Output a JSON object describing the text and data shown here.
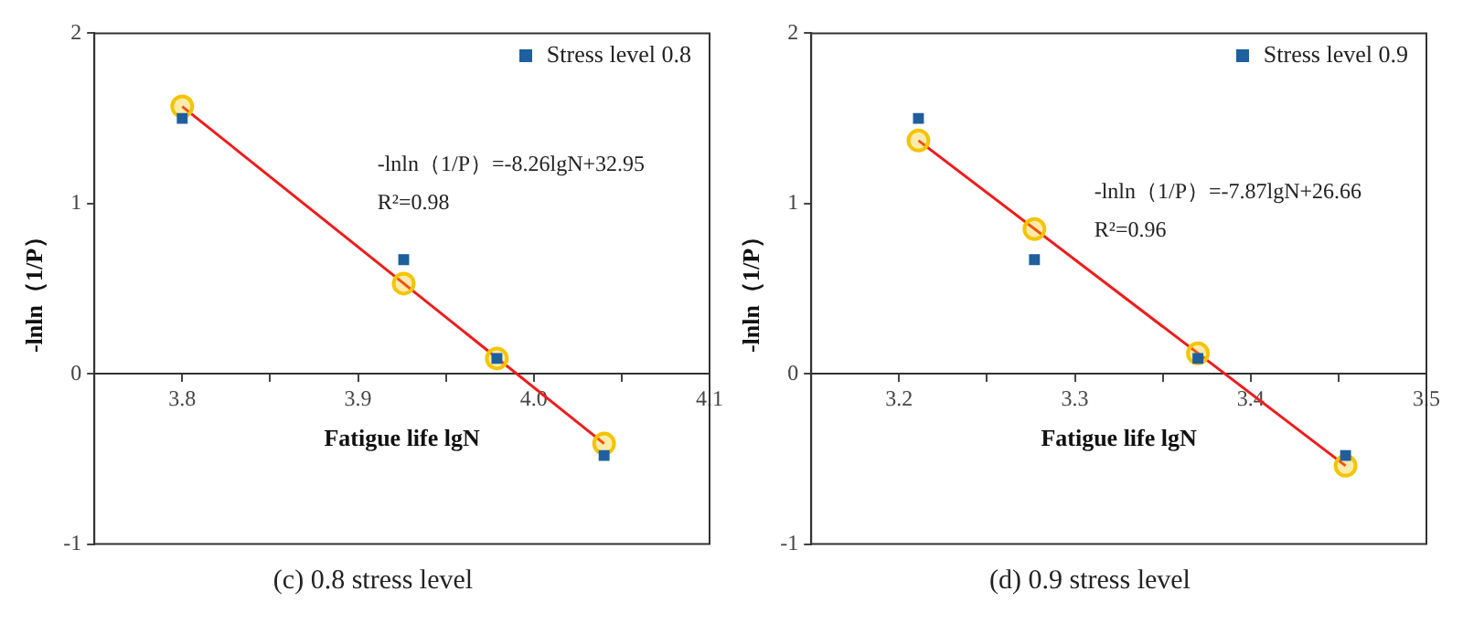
{
  "chart_data": [
    {
      "type": "scatter",
      "xlabel": "Fatigue life lgN",
      "ylabel": "-lnln（1/P）",
      "xlim": [
        3.75,
        4.1
      ],
      "xticks": [
        3.8,
        {
          "value": 3.85,
          "label": null
        },
        3.9,
        {
          "value": 3.95,
          "label": null
        },
        "4.0",
        {
          "value": 4.05,
          "label": null
        },
        4.1
      ],
      "ylim": [
        -1,
        2
      ],
      "yticks": [
        -1,
        0,
        1,
        2
      ],
      "grid": false,
      "legend": "top right",
      "annotations": [
        "-lnln（1/P）=-8.26lgN+32.95",
        "R²=0.98",
        "(c) 0.8 stress level"
      ],
      "series": [
        {
          "name": "Stress level 0.8",
          "type": "scatter",
          "marker": "square",
          "color": "#1f5f9e",
          "x": [
            3.8,
            3.926,
            3.979,
            4.04
          ],
          "values": [
            1.5,
            0.67,
            0.09,
            -0.48
          ]
        },
        {
          "type": "scatter",
          "marker": "circle",
          "color": "#f5c400",
          "x": [
            3.8,
            3.926,
            3.979,
            4.04
          ],
          "values": [
            1.57,
            0.53,
            0.09,
            -0.41
          ]
        },
        {
          "type": "line",
          "marker": "none",
          "line_style": "solid",
          "color": "#ee1c1c",
          "x": [
            3.8,
            4.04
          ],
          "values": [
            1.57,
            -0.41
          ]
        }
      ]
    },
    {
      "type": "scatter",
      "xlabel": "Fatigue life lgN",
      "ylabel": "-lnln（1/P）",
      "xlim": [
        3.15,
        3.5
      ],
      "xticks": [
        3.2,
        {
          "value": 3.25,
          "label": null
        },
        3.3,
        {
          "value": 3.35,
          "label": null
        },
        3.4,
        {
          "value": 3.45,
          "label": null
        },
        3.5
      ],
      "ylim": [
        -1,
        2
      ],
      "yticks": [
        -1,
        0,
        1,
        2
      ],
      "grid": false,
      "legend": "top right",
      "annotations": [
        "-lnln（1/P）=-7.87lgN+26.66",
        "R²=0.96",
        "(d) 0.9 stress level"
      ],
      "series": [
        {
          "name": "Stress level 0.9",
          "type": "scatter",
          "marker": "square",
          "color": "#1f5f9e",
          "x": [
            3.211,
            3.277,
            3.37,
            3.454
          ],
          "values": [
            1.5,
            0.67,
            0.09,
            -0.48
          ]
        },
        {
          "type": "scatter",
          "marker": "circle",
          "color": "#f5c400",
          "x": [
            3.211,
            3.277,
            3.37,
            3.454
          ],
          "values": [
            1.37,
            0.85,
            0.12,
            -0.54
          ]
        },
        {
          "type": "line",
          "marker": "none",
          "line_style": "solid",
          "color": "#ee1c1c",
          "x": [
            3.211,
            3.454
          ],
          "values": [
            1.37,
            -0.54
          ]
        }
      ]
    }
  ]
}
